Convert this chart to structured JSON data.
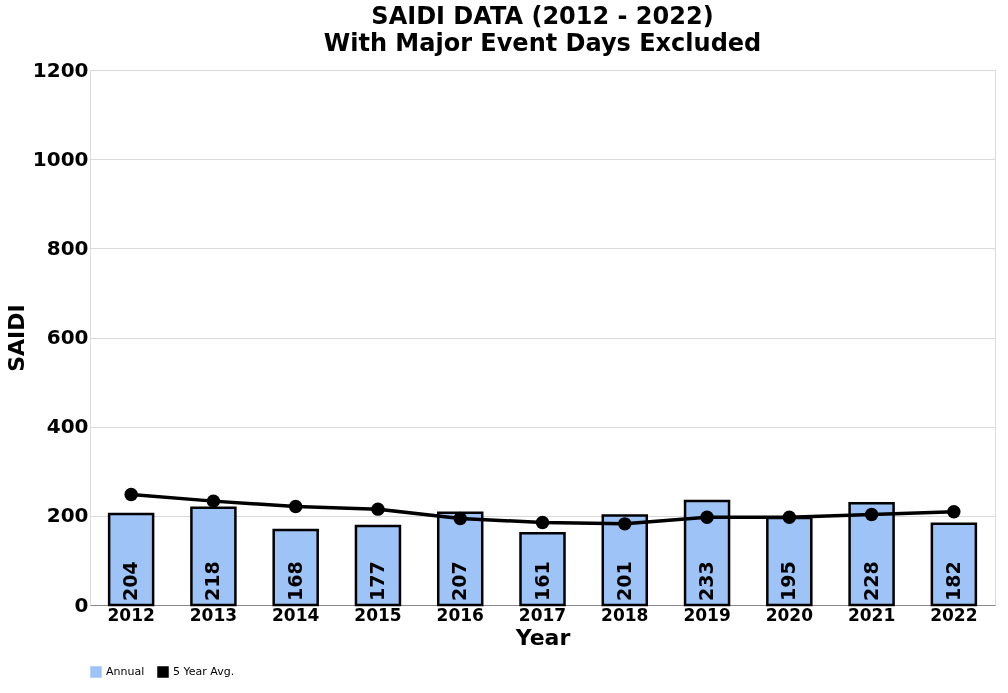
{
  "chart_data": {
    "type": "bar",
    "title": "SAIDI DATA (2012 - 2022)",
    "subtitle": "With Major Event Days Excluded",
    "xlabel": "Year",
    "ylabel": "SAIDI",
    "categories": [
      "2012",
      "2013",
      "2014",
      "2015",
      "2016",
      "2017",
      "2018",
      "2019",
      "2020",
      "2021",
      "2022"
    ],
    "series": [
      {
        "name": "Annual",
        "color": "#9dc3f7",
        "values": [
          204,
          218,
          168,
          177,
          207,
          161,
          201,
          233,
          195,
          228,
          182
        ],
        "data_labels": true
      },
      {
        "name": "5 Year Avg.",
        "type": "line",
        "color": "#000000",
        "marker": "circle",
        "values": [
          248,
          233,
          221,
          215,
          194,
          185,
          182,
          197,
          197,
          203,
          209
        ]
      }
    ],
    "ylim": [
      0,
      1200
    ],
    "yticks": [
      0,
      200,
      400,
      600,
      800,
      1000,
      1200
    ],
    "grid": "y",
    "legend": "bottom"
  }
}
